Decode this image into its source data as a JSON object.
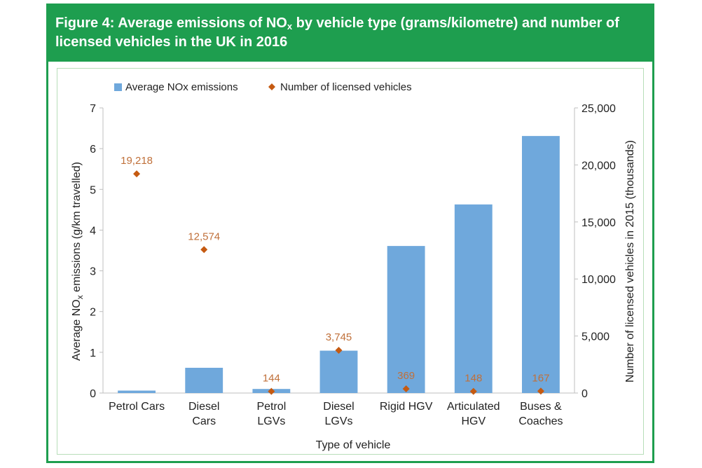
{
  "figure": {
    "title_prefix": "Figure 4: Average emissions of NO",
    "title_sub": "x",
    "title_suffix": " by vehicle type (grams/kilometre) and number of licensed vehicles in the UK in 2016"
  },
  "colors": {
    "header_green": "#1e9e4f",
    "bar_blue": "#6fa8dc",
    "marker_orange": "#c55a11",
    "label_orange": "#c0703a"
  },
  "chart_data": {
    "type": "bar",
    "categories": [
      [
        "Petrol Cars"
      ],
      [
        "Diesel",
        "Cars"
      ],
      [
        "Petrol",
        "LGVs"
      ],
      [
        "Diesel",
        "LGVs"
      ],
      [
        "Rigid HGV"
      ],
      [
        "Articulated",
        "HGV"
      ],
      [
        "Buses &",
        "Coaches"
      ]
    ],
    "series": [
      {
        "name": "Average NOx emissions",
        "kind": "bar",
        "axis": "left",
        "values": [
          0.06,
          0.62,
          0.1,
          1.04,
          3.61,
          4.63,
          6.31
        ]
      },
      {
        "name": "Number of licensed vehicles",
        "kind": "marker",
        "axis": "right",
        "values": [
          19218,
          12574,
          144,
          3745,
          369,
          148,
          167
        ],
        "labels": [
          "19,218",
          "12,574",
          "144",
          "3,745",
          "369",
          "148",
          "167"
        ]
      }
    ],
    "xlabel": "Type of vehicle",
    "ylabel_left_prefix": "Average NO",
    "ylabel_left_sub": "x",
    "ylabel_left_suffix": " emissions (g/km travelled)",
    "ylabel_right": "Number of licensed vehicles in 2015 (thousands)",
    "ylim_left": [
      0,
      7
    ],
    "ylim_right": [
      0,
      25000
    ],
    "yticks_left": [
      "0",
      "1",
      "2",
      "3",
      "4",
      "5",
      "6",
      "7"
    ],
    "yticks_right": [
      "0",
      "5,000",
      "10,000",
      "15,000",
      "20,000",
      "25,000"
    ],
    "legend_position": "top",
    "grid": false
  }
}
